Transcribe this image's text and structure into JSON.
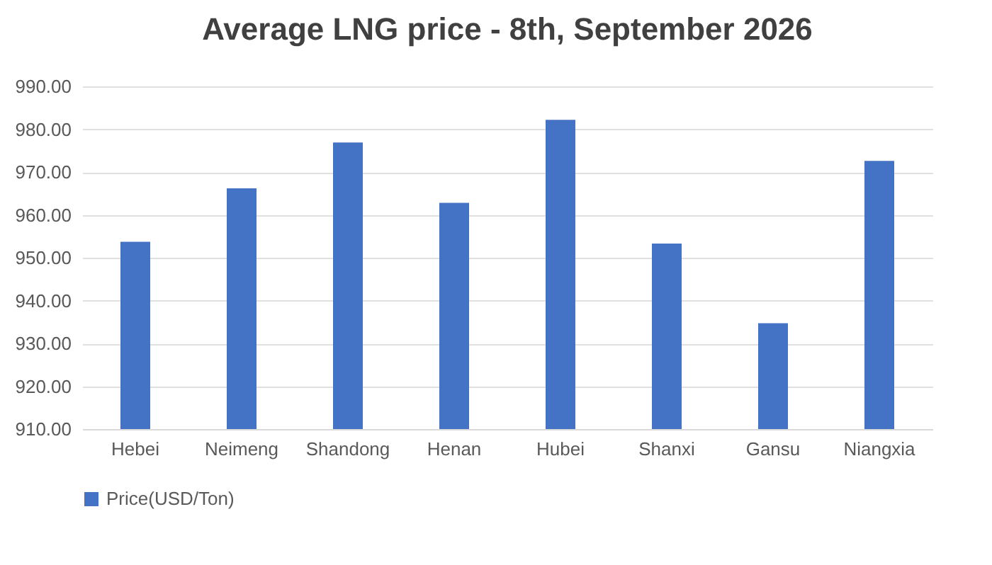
{
  "chart_data": {
    "type": "bar",
    "title": "Average LNG price - 8th, September 2026",
    "categories": [
      "Hebei",
      "Neimeng",
      "Shandong",
      "Henan",
      "Hubei",
      "Shanxi",
      "Gansu",
      "Niangxia"
    ],
    "series": [
      {
        "name": "Price(USD/Ton)",
        "color": "#4472c4",
        "values": [
          953.7,
          966.2,
          976.9,
          962.8,
          982.2,
          953.3,
          934.7,
          972.6
        ]
      }
    ],
    "ylim": [
      910,
      990
    ],
    "yticks": [
      {
        "value": 910,
        "label": "910.00"
      },
      {
        "value": 920,
        "label": "920.00"
      },
      {
        "value": 930,
        "label": "930.00"
      },
      {
        "value": 940,
        "label": "940.00"
      },
      {
        "value": 950,
        "label": "950.00"
      },
      {
        "value": 960,
        "label": "960.00"
      },
      {
        "value": 970,
        "label": "970.00"
      },
      {
        "value": 980,
        "label": "980.00"
      },
      {
        "value": 990,
        "label": "990.00"
      }
    ],
    "grid": "y",
    "legend": "bottom"
  }
}
